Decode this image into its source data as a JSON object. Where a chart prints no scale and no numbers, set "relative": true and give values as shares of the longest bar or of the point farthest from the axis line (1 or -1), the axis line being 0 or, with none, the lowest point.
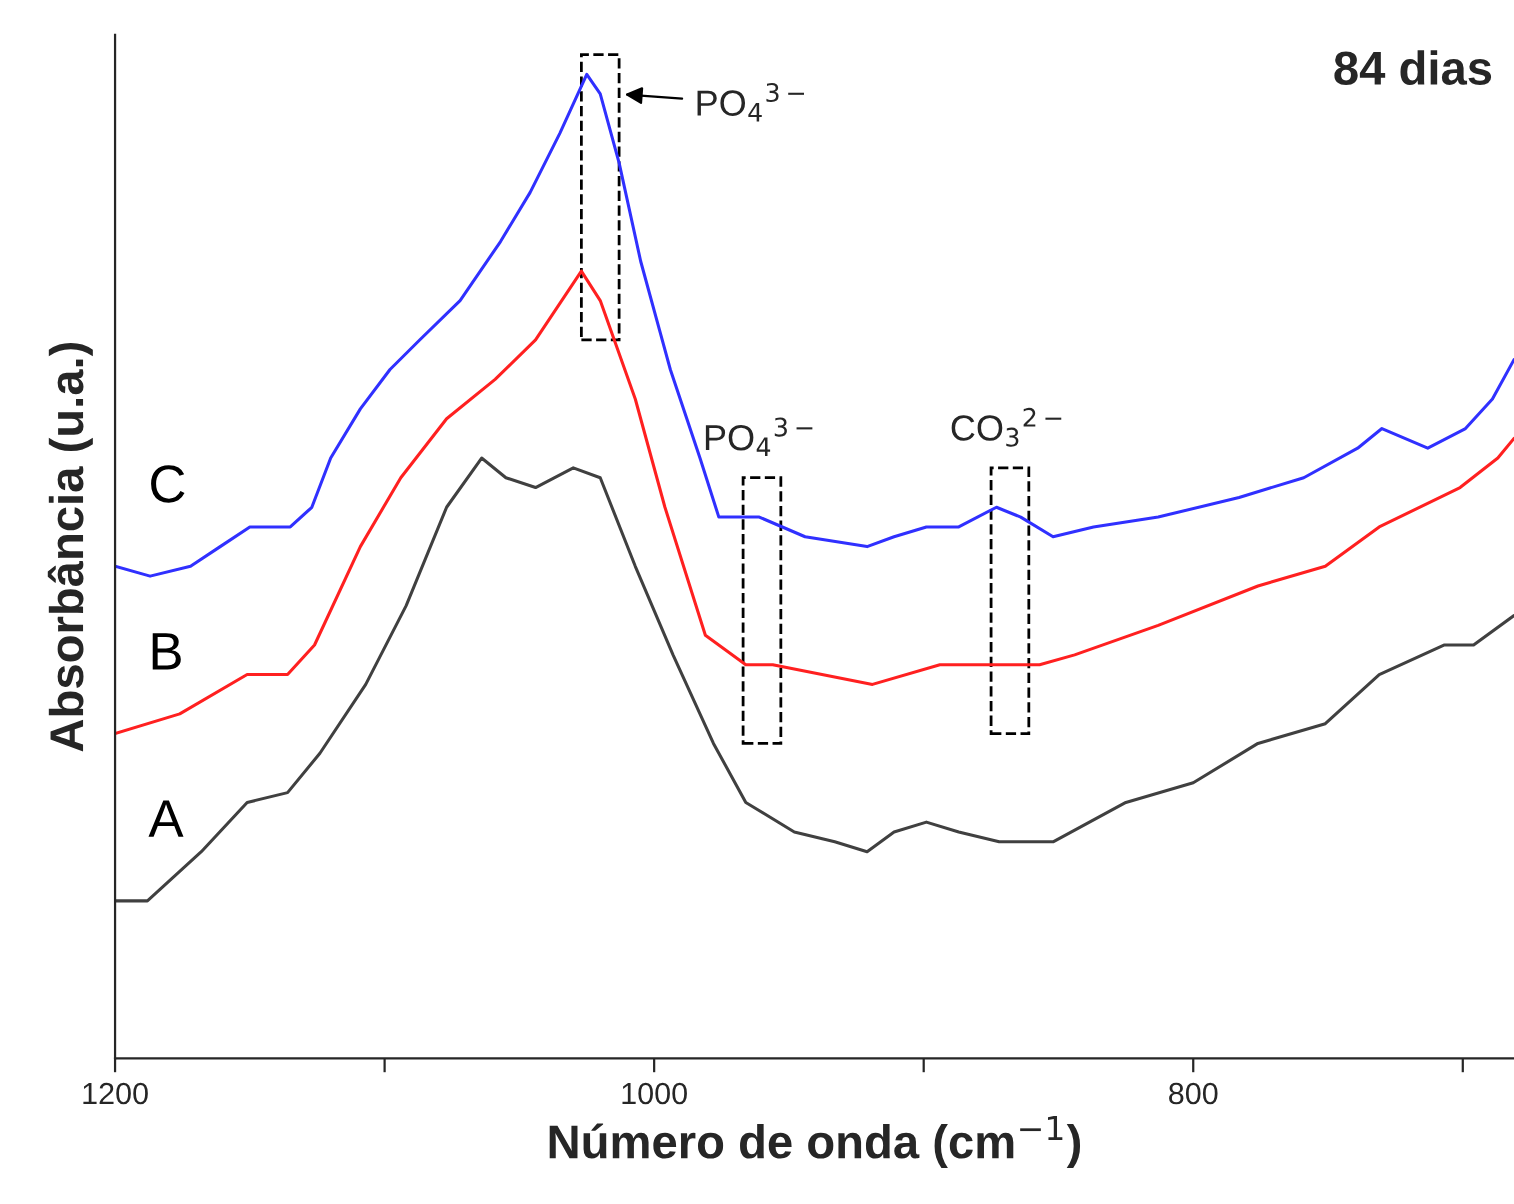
{
  "chart_data": {
    "type": "line",
    "relative": true,
    "xlabel": "Número de onda (cm$^{−1}$)",
    "ylabel": "Absorbância (u.a.)",
    "xlim": [
      1200,
      681
    ],
    "xticks": [
      1200,
      {
        "value": 1100,
        "label": null
      },
      1000,
      {
        "value": 900,
        "label": null
      },
      800,
      {
        "value": 700,
        "label": null
      }
    ],
    "annotations": [
      "84 dias",
      {
        "text": "PO$_{4}$$^{3−}$",
        "x": 1020,
        "y": 1.0
      },
      {
        "text": "PO$_{4}$$^{3−}$",
        "x": 960,
        "y": 0.55
      },
      {
        "text": "CO$_{3}$$^{2−}$",
        "x": 868,
        "y": 0.56
      }
    ],
    "series": [
      {
        "name": "A",
        "color": "#404040",
        "x": [
          1200,
          1188,
          1168,
          1151,
          1136,
          1124,
          1107,
          1092,
          1077,
          1064,
          1055,
          1044,
          1030,
          1020,
          1007,
          993,
          978,
          966,
          948,
          933,
          921,
          911,
          899,
          887,
          872,
          852,
          825,
          800,
          776,
          751,
          731,
          707,
          696,
          681
        ],
        "values": [
          0.16,
          0.16,
          0.21,
          0.26,
          0.27,
          0.31,
          0.38,
          0.46,
          0.56,
          0.61,
          0.59,
          0.58,
          0.6,
          0.59,
          0.5,
          0.41,
          0.32,
          0.26,
          0.23,
          0.22,
          0.21,
          0.23,
          0.24,
          0.23,
          0.22,
          0.22,
          0.26,
          0.28,
          0.32,
          0.34,
          0.39,
          0.42,
          0.42,
          0.45
        ]
      },
      {
        "name": "B",
        "color": "#ff2020",
        "x": [
          1200,
          1176,
          1151,
          1136,
          1126,
          1109,
          1094,
          1077,
          1059,
          1044,
          1027,
          1020,
          1007,
          996,
          981,
          966,
          956,
          919,
          894,
          874,
          857,
          844,
          813,
          776,
          751,
          731,
          701,
          687,
          681
        ],
        "values": [
          0.33,
          0.35,
          0.39,
          0.39,
          0.42,
          0.52,
          0.59,
          0.65,
          0.69,
          0.73,
          0.8,
          0.77,
          0.67,
          0.56,
          0.43,
          0.4,
          0.4,
          0.38,
          0.4,
          0.4,
          0.4,
          0.41,
          0.44,
          0.48,
          0.5,
          0.54,
          0.58,
          0.61,
          0.63
        ]
      },
      {
        "name": "C",
        "color": "#3030ff",
        "x": [
          1200,
          1187,
          1172,
          1161,
          1150,
          1135,
          1127,
          1120,
          1109,
          1098,
          1087,
          1072,
          1057,
          1046,
          1035,
          1025,
          1020,
          1013,
          1005,
          998,
          994,
          983,
          976,
          961,
          944,
          921,
          911,
          899,
          887,
          873,
          864,
          852,
          837,
          813,
          783,
          759,
          739,
          730,
          713,
          699,
          689,
          681
        ],
        "values": [
          0.5,
          0.49,
          0.5,
          0.52,
          0.54,
          0.54,
          0.56,
          0.61,
          0.66,
          0.7,
          0.73,
          0.77,
          0.83,
          0.88,
          0.94,
          1.0,
          0.98,
          0.91,
          0.81,
          0.74,
          0.7,
          0.61,
          0.55,
          0.55,
          0.53,
          0.52,
          0.53,
          0.54,
          0.54,
          0.56,
          0.55,
          0.53,
          0.54,
          0.55,
          0.57,
          0.59,
          0.62,
          0.64,
          0.62,
          0.64,
          0.67,
          0.71
        ]
      }
    ]
  }
}
